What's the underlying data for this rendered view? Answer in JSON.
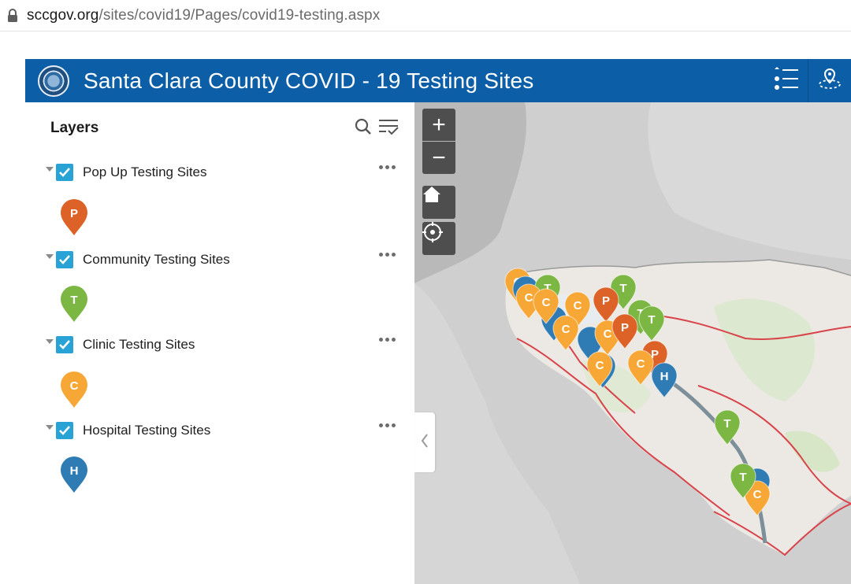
{
  "browser": {
    "url_host": "sccgov.org",
    "url_path": "/sites/covid19/Pages/covid19-testing.aspx"
  },
  "header": {
    "title": "Santa Clara County COVID - 19 Testing Sites",
    "background": "#0c5ea6",
    "buttons": [
      "list-icon",
      "location-pin-icon"
    ]
  },
  "layers_panel": {
    "title": "Layers",
    "layers": [
      {
        "label": "Pop Up Testing Sites",
        "checked": true,
        "legend_letter": "P",
        "color": "#dc6228"
      },
      {
        "label": "Community Testing Sites",
        "checked": true,
        "legend_letter": "T",
        "color": "#7cb744"
      },
      {
        "label": "Clinic Testing Sites",
        "checked": true,
        "legend_letter": "C",
        "color": "#f7a735"
      },
      {
        "label": "Hospital Testing Sites",
        "checked": true,
        "legend_letter": "H",
        "color": "#2f7cb4"
      }
    ]
  },
  "map": {
    "controls": [
      "zoom-in",
      "zoom-out",
      "home",
      "locate"
    ],
    "zoom_in_label": "+",
    "zoom_out_label": "−",
    "pins": [
      {
        "letter": "C",
        "color": "#f7a735"
      },
      {
        "letter": "",
        "color": "#2f7cb4"
      },
      {
        "letter": "T",
        "color": "#7cb744"
      },
      {
        "letter": "C",
        "color": "#f7a735"
      },
      {
        "letter": "",
        "color": "#2f7cb4"
      },
      {
        "letter": "C",
        "color": "#f7a735"
      },
      {
        "letter": "T",
        "color": "#7cb744"
      },
      {
        "letter": "P",
        "color": "#dc6228"
      },
      {
        "letter": "C",
        "color": "#f7a735"
      },
      {
        "letter": "T",
        "color": "#7cb744"
      },
      {
        "letter": "T",
        "color": "#7cb744"
      },
      {
        "letter": "C",
        "color": "#f7a735"
      },
      {
        "letter": "",
        "color": "#2f7cb4"
      },
      {
        "letter": "C",
        "color": "#f7a735"
      },
      {
        "letter": "P",
        "color": "#dc6228"
      },
      {
        "letter": "P",
        "color": "#dc6228"
      },
      {
        "letter": "",
        "color": "#2f7cb4"
      },
      {
        "letter": "C",
        "color": "#f7a735"
      },
      {
        "letter": "C",
        "color": "#f7a735"
      },
      {
        "letter": "H",
        "color": "#2f7cb4"
      },
      {
        "letter": "T",
        "color": "#7cb744"
      },
      {
        "letter": "",
        "color": "#2f7cb4"
      },
      {
        "letter": "C",
        "color": "#f7a735"
      },
      {
        "letter": "T",
        "color": "#7cb744"
      }
    ]
  }
}
